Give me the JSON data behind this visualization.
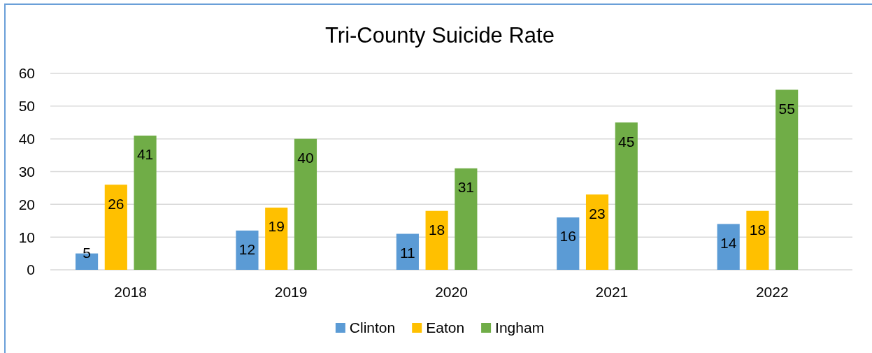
{
  "chart_data": {
    "type": "bar",
    "title": "Tri-County Suicide Rate",
    "categories": [
      "2018",
      "2019",
      "2020",
      "2021",
      "2022"
    ],
    "series": [
      {
        "name": "Clinton",
        "color": "#5b9bd5",
        "values": [
          5,
          12,
          11,
          16,
          14
        ]
      },
      {
        "name": "Eaton",
        "color": "#ffc000",
        "values": [
          26,
          19,
          18,
          23,
          18
        ]
      },
      {
        "name": "Ingham",
        "color": "#70ad47",
        "values": [
          41,
          40,
          31,
          45,
          55
        ]
      }
    ],
    "ylim": [
      0,
      60
    ],
    "yticks": [
      0,
      10,
      20,
      30,
      40,
      50,
      60
    ],
    "grid": "y",
    "data_labels": true,
    "legend": "bottom"
  }
}
